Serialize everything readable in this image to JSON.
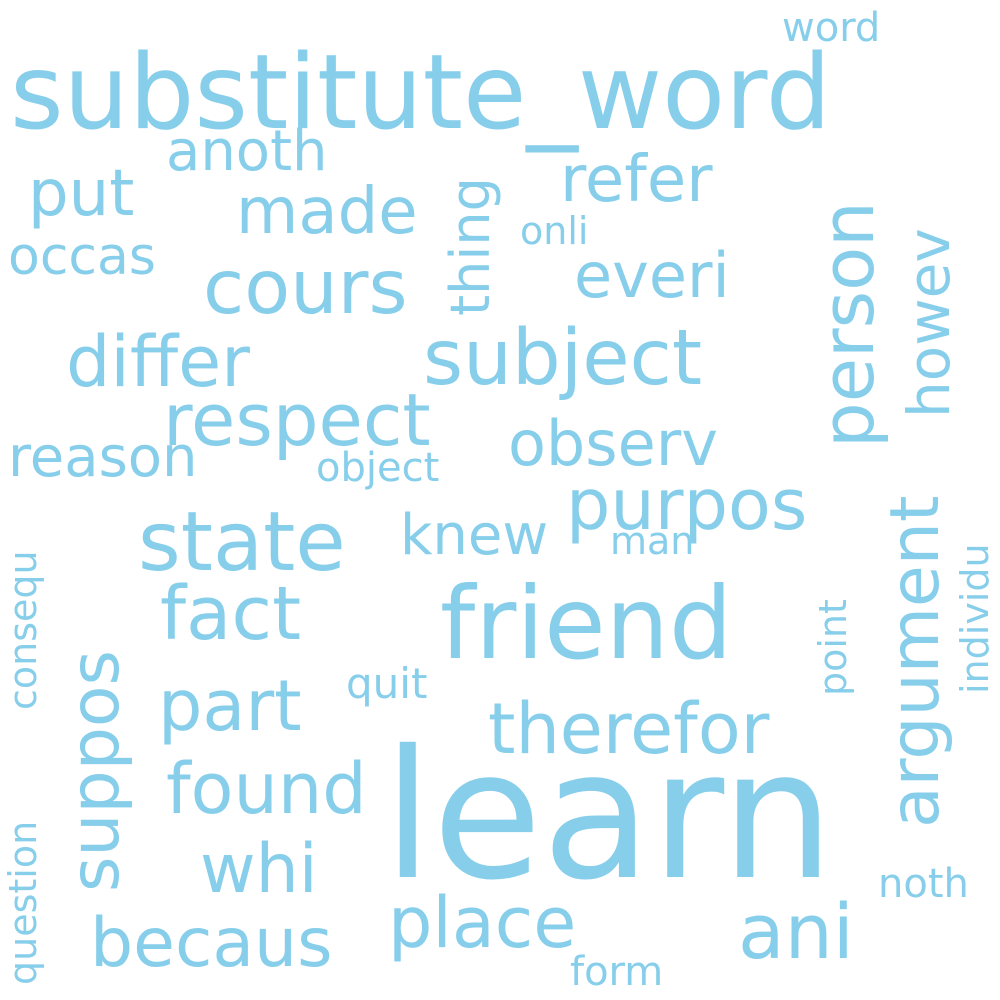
{
  "color": "#87ceeb",
  "words": {
    "substitute_word": "substitute_word",
    "learn": "learn",
    "friend": "friend",
    "state": "state",
    "subject": "subject",
    "person": "person",
    "respect": "respect",
    "cours": "cours",
    "differ": "differ",
    "purpos": "purpos",
    "therefor": "therefor",
    "argument": "argument",
    "suppos": "suppos",
    "fact": "fact",
    "part": "part",
    "found": "found",
    "place": "place",
    "ani": "ani",
    "becaus": "becaus",
    "whi": "whi",
    "made": "made",
    "put": "put",
    "refer": "refer",
    "everi": "everi",
    "observ": "observ",
    "howev": "howev",
    "knew": "knew",
    "reason": "reason",
    "anoth": "anoth",
    "thing": "thing",
    "occas": "occas",
    "consequ": "consequ",
    "question": "question",
    "object": "object",
    "man": "man",
    "point": "point",
    "individu": "individu",
    "quit": "quit",
    "noth": "noth",
    "form": "form",
    "onli": "onli",
    "word": "word"
  }
}
